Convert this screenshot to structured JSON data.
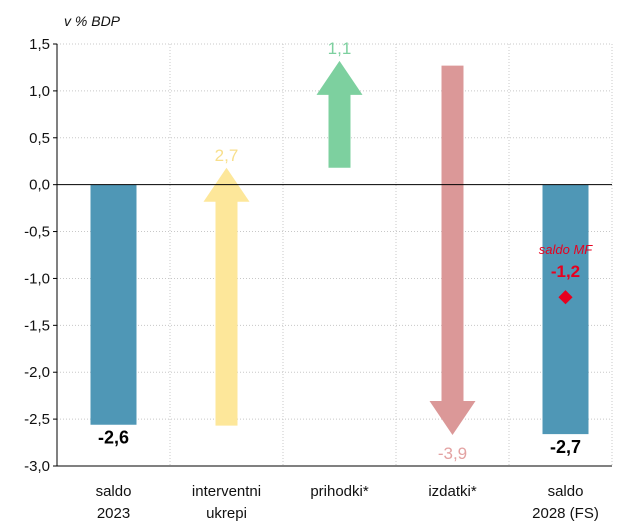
{
  "chart_data": {
    "type": "bar",
    "unit_label": "v % BDP",
    "ylim": [
      -3.0,
      1.5
    ],
    "yticks": [
      "1,5",
      "1,0",
      "0,5",
      "0,0",
      "-0,5",
      "-1,0",
      "-1,5",
      "-2,0",
      "-2,5",
      "-3,0"
    ],
    "ytick_values": [
      1.5,
      1.0,
      0.5,
      0.0,
      -0.5,
      -1.0,
      -1.5,
      -2.0,
      -2.5,
      -3.0
    ],
    "categories": [
      [
        "saldo",
        "2023"
      ],
      [
        "interventni",
        "ukrepi"
      ],
      [
        "prihodki*"
      ],
      [
        "izdatki*"
      ],
      [
        "saldo",
        "2028 (FS)"
      ]
    ],
    "bars": [
      {
        "kind": "bar",
        "start": 0,
        "end": -2.56,
        "label": "-2,6",
        "color": "#4f97b6"
      },
      {
        "kind": "arrow-up",
        "start": -2.57,
        "end": 0.18,
        "label": "2,7",
        "color": "#fde79a",
        "label_color": "#f8df8c"
      },
      {
        "kind": "arrow-up",
        "start": 0.18,
        "end": 1.32,
        "label": "1,1",
        "color": "#7dd09f",
        "label_color": "#7dd09f"
      },
      {
        "kind": "arrow-down",
        "start": 1.27,
        "end": -2.67,
        "label": "-3,9",
        "color": "#db9898",
        "label_color": "#e3a2a2"
      },
      {
        "kind": "bar",
        "start": 0,
        "end": -2.66,
        "label": "-2,7",
        "color": "#4f97b6"
      }
    ],
    "marker": {
      "category_index": 4,
      "value": -1.2,
      "label": "saldo MF",
      "value_label": "-1,2",
      "color": "#e8001f"
    },
    "grid": true
  }
}
